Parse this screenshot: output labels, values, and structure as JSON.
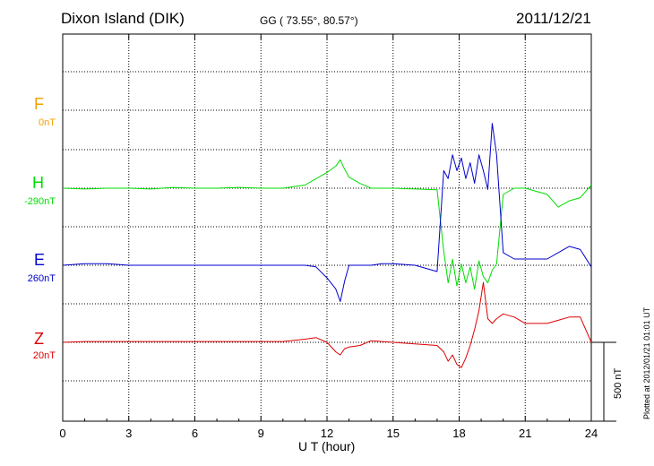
{
  "header": {
    "station": "Dixon Island (DIK)",
    "coords": "GG ( 73.55°,  80.57°)",
    "date": "2011/12/21"
  },
  "footer": {
    "plotted": "Plotted at 2012/01/21 01:01 UT"
  },
  "chart_data": {
    "type": "line",
    "xlabel": "U T (hour)",
    "xlim": [
      0,
      24
    ],
    "xticks": [
      0,
      3,
      6,
      9,
      12,
      15,
      18,
      21,
      24
    ],
    "grid": true,
    "scale_bar": {
      "label": "500 nT",
      "value_nT": 500
    },
    "series": [
      {
        "name": "F",
        "baseline": "0nT",
        "color": "#f0a000",
        "values": []
      },
      {
        "name": "H",
        "baseline": "-290nT",
        "color": "#00dd00",
        "x": [
          0,
          1,
          2,
          3,
          4,
          5,
          6,
          7,
          8,
          9,
          10,
          11,
          11.5,
          12,
          12.4,
          12.6,
          12.8,
          13,
          13.5,
          14,
          14.5,
          15,
          16,
          17,
          17.3,
          17.5,
          17.7,
          17.9,
          18.1,
          18.3,
          18.5,
          18.7,
          18.9,
          19.1,
          19.3,
          19.5,
          19.7,
          20,
          20.5,
          21,
          22,
          22.5,
          23,
          23.5,
          24
        ],
        "values": [
          0,
          -5,
          0,
          0,
          -5,
          5,
          0,
          0,
          5,
          0,
          0,
          20,
          60,
          100,
          140,
          180,
          120,
          70,
          30,
          0,
          0,
          0,
          -5,
          -10,
          -400,
          -600,
          -450,
          -620,
          -480,
          -600,
          -500,
          -640,
          -460,
          -560,
          -600,
          -520,
          -480,
          -40,
          0,
          0,
          -40,
          -120,
          -80,
          -60,
          20
        ]
      },
      {
        "name": "E",
        "baseline": "260nT",
        "color": "#0000cc",
        "x": [
          0,
          1,
          2,
          3,
          4,
          5,
          6,
          7,
          8,
          9,
          10,
          11,
          11.5,
          12,
          12.4,
          12.6,
          12.8,
          13,
          13.5,
          14,
          14.5,
          15,
          16,
          17,
          17.3,
          17.5,
          17.7,
          17.9,
          18.1,
          18.3,
          18.5,
          18.7,
          18.9,
          19.1,
          19.3,
          19.5,
          19.7,
          20,
          20.5,
          21,
          22,
          22.5,
          23,
          23.5,
          24
        ],
        "values": [
          0,
          10,
          10,
          0,
          0,
          0,
          0,
          0,
          0,
          0,
          0,
          0,
          -10,
          -80,
          -150,
          -230,
          -100,
          0,
          0,
          0,
          10,
          10,
          0,
          -40,
          600,
          550,
          700,
          600,
          680,
          550,
          650,
          520,
          700,
          600,
          480,
          900,
          700,
          80,
          40,
          40,
          40,
          80,
          120,
          100,
          -10
        ]
      },
      {
        "name": "Z",
        "baseline": "20nT",
        "color": "#dd0000",
        "x": [
          0,
          1,
          2,
          3,
          4,
          5,
          6,
          7,
          8,
          9,
          10,
          11,
          11.5,
          12,
          12.4,
          12.6,
          12.8,
          13,
          13.5,
          14,
          14.5,
          15,
          16,
          17,
          17.3,
          17.5,
          17.7,
          17.9,
          18.1,
          18.3,
          18.5,
          18.7,
          18.9,
          19.1,
          19.3,
          19.5,
          19.7,
          20,
          20.5,
          21,
          22,
          22.5,
          23,
          23.5,
          24
        ],
        "values": [
          0,
          5,
          5,
          5,
          5,
          5,
          5,
          5,
          5,
          5,
          5,
          20,
          30,
          0,
          -60,
          -80,
          -40,
          -30,
          -20,
          10,
          5,
          0,
          -10,
          -20,
          -60,
          -120,
          -80,
          -140,
          -160,
          -100,
          -20,
          80,
          200,
          380,
          150,
          120,
          150,
          180,
          160,
          120,
          120,
          140,
          160,
          160,
          0
        ]
      }
    ]
  }
}
